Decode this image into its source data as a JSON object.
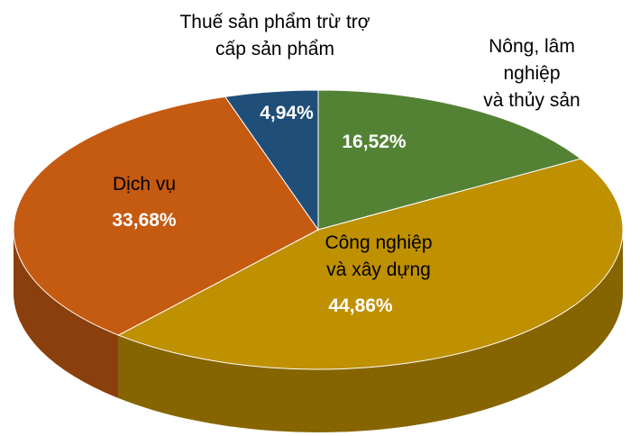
{
  "chart_data": {
    "type": "pie",
    "categories": [
      "Nông, lâm nghiệp\nvà thủy sản",
      "Công nghiệp\nvà xây dựng",
      "Dịch vụ",
      "Thuế sản phẩm trừ trợ\ncấp sản phẩm"
    ],
    "values": [
      16.52,
      44.86,
      33.68,
      4.94
    ],
    "value_labels": [
      "16,52%",
      "44,86%",
      "33,68%",
      "4,94%"
    ],
    "colors": [
      "#548235",
      "#bf9000",
      "#c55a11",
      "#1f4e79"
    ]
  }
}
